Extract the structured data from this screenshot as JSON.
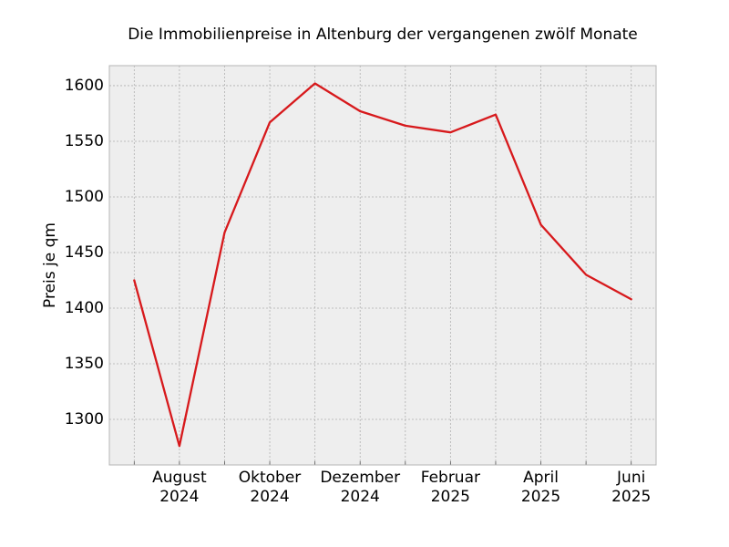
{
  "chart_data": {
    "type": "line",
    "title": "Die Immobilienpreise in Altenburg der vergangenen zwölf Monate",
    "xlabel": "",
    "ylabel": "Preis je qm",
    "x": [
      "2024-07",
      "2024-08",
      "2024-09",
      "2024-10",
      "2024-11",
      "2024-12",
      "2025-01",
      "2025-02",
      "2025-03",
      "2025-04",
      "2025-05",
      "2025-06"
    ],
    "series": [
      {
        "values": [
          1425,
          1276,
          1468,
          1567,
          1602,
          1577,
          1564,
          1558,
          1574,
          1475,
          1430,
          1408
        ],
        "color": "#d7191c"
      }
    ],
    "x_ticks": [
      {
        "month": "August",
        "year": "2024"
      },
      {
        "month": "Oktober",
        "year": "2024"
      },
      {
        "month": "Dezember",
        "year": "2024"
      },
      {
        "month": "Februar",
        "year": "2025"
      },
      {
        "month": "April",
        "year": "2025"
      },
      {
        "month": "Juni",
        "year": "2025"
      }
    ],
    "y_ticks": [
      "1300",
      "1350",
      "1400",
      "1450",
      "1500",
      "1550",
      "1600"
    ],
    "ylim": [
      1259,
      1618
    ],
    "grid": true,
    "background_color": "#eeeeee"
  }
}
